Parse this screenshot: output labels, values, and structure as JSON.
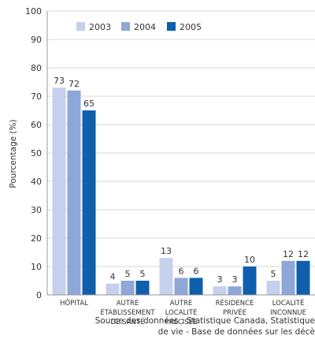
{
  "chart_data": {
    "type": "bar",
    "ylabel": "Pourcentage (%)",
    "ylim": [
      0,
      100
    ],
    "yticks": [
      0,
      10,
      20,
      30,
      40,
      50,
      60,
      70,
      80,
      90,
      100
    ],
    "grid": true,
    "legend": "top-left",
    "categories": [
      [
        "HÔPITAL"
      ],
      [
        "AUTRE",
        "ÉTABLISSEMENT",
        "DE SANTÉ"
      ],
      [
        "AUTRE",
        "LOCALITÉ",
        "PRÉCISÉE"
      ],
      [
        "RÉSIDENCE",
        "PRIVÉE"
      ],
      [
        "LOCALITÉ",
        "INCONNUE"
      ]
    ],
    "series": [
      {
        "name": "2003",
        "color": "#c5d0ec",
        "values": [
          73,
          4,
          13,
          3,
          5
        ]
      },
      {
        "name": "2004",
        "color": "#8ea6d8",
        "values": [
          72,
          5,
          6,
          3,
          12
        ]
      },
      {
        "name": "2005",
        "color": "#0f5fad",
        "values": [
          65,
          5,
          6,
          10,
          12
        ]
      }
    ]
  },
  "source": {
    "line1": "Source des données : Statistique Canada, Statistique",
    "line2": "de vie - Base de données sur les décè"
  }
}
